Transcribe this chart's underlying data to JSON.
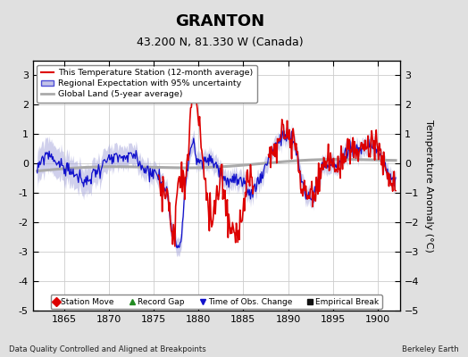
{
  "title": "GRANTON",
  "subtitle": "43.200 N, 81.330 W (Canada)",
  "ylabel": "Temperature Anomaly (°C)",
  "xlabel_note": "Data Quality Controlled and Aligned at Breakpoints",
  "credit": "Berkeley Earth",
  "xlim": [
    1861.5,
    1902.5
  ],
  "ylim": [
    -5.0,
    3.5
  ],
  "yticks": [
    -5,
    -4,
    -3,
    -2,
    -1,
    0,
    1,
    2,
    3
  ],
  "xticks": [
    1865,
    1870,
    1875,
    1880,
    1885,
    1890,
    1895,
    1900
  ],
  "bg_color": "#e0e0e0",
  "plot_bg_color": "#ffffff",
  "grid_color": "#cccccc",
  "title_fontsize": 13,
  "subtitle_fontsize": 9,
  "red_color": "#dd0000",
  "blue_color": "#1111cc",
  "band_color": "#aaaadd",
  "gray_color": "#aaaaaa",
  "bottom_legend": [
    {
      "label": "Station Move",
      "color": "#dd0000",
      "marker": "D"
    },
    {
      "label": "Record Gap",
      "color": "#228B22",
      "marker": "^"
    },
    {
      "label": "Time of Obs. Change",
      "color": "#1111cc",
      "marker": "v"
    },
    {
      "label": "Empirical Break",
      "color": "#111111",
      "marker": "s"
    }
  ]
}
